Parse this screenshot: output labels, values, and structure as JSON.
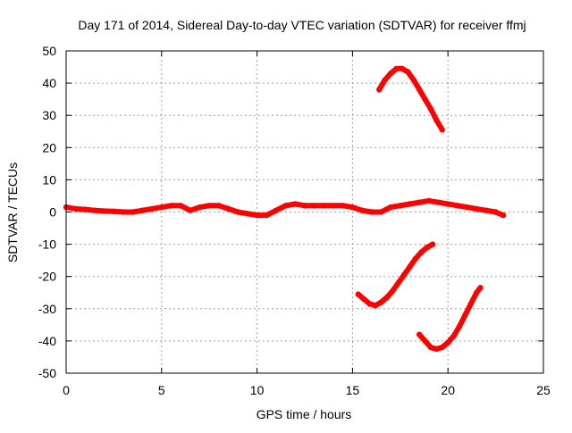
{
  "chart_data": {
    "type": "scatter",
    "title": "Day 171 of 2014, Sidereal Day-to-day VTEC variation (SDTVAR) for receiver ffmj",
    "xlabel": "GPS time / hours",
    "ylabel": "SDTVAR / TECUs",
    "xlim": [
      0,
      25
    ],
    "ylim": [
      -50,
      50
    ],
    "xticks": [
      0,
      5,
      10,
      15,
      20,
      25
    ],
    "yticks": [
      -50,
      -40,
      -30,
      -20,
      -10,
      0,
      10,
      20,
      30,
      40,
      50
    ],
    "grid": true,
    "legend": "none",
    "series": [
      {
        "name": "near-zero track",
        "x": [
          0.0,
          0.5,
          1.0,
          1.5,
          2.0,
          2.5,
          3.0,
          3.5,
          4.0,
          4.5,
          5.0,
          5.5,
          6.0,
          6.5,
          7.0,
          7.5,
          8.0,
          8.5,
          9.0,
          9.5,
          10.0,
          10.5,
          11.0,
          11.5,
          12.0,
          12.5,
          13.0,
          13.5,
          14.0,
          14.5,
          15.0,
          15.5,
          16.0,
          16.5,
          17.0,
          17.5,
          18.0,
          18.5,
          19.0,
          19.5,
          20.0,
          20.5,
          21.0,
          21.5,
          22.0,
          22.5,
          22.9
        ],
        "values": [
          1.5,
          1.0,
          0.8,
          0.5,
          0.3,
          0.2,
          0.0,
          0.0,
          0.5,
          1.0,
          1.5,
          2.0,
          2.0,
          0.5,
          1.5,
          2.0,
          2.0,
          1.0,
          0.0,
          -0.5,
          -1.0,
          -1.0,
          0.5,
          2.0,
          2.5,
          2.0,
          2.0,
          2.0,
          2.0,
          2.0,
          1.5,
          0.5,
          0.0,
          0.0,
          1.5,
          2.0,
          2.5,
          3.0,
          3.5,
          3.0,
          2.5,
          2.0,
          1.5,
          1.0,
          0.5,
          0.0,
          -1.0
        ],
        "color": "#ff0000"
      },
      {
        "name": "positive arc",
        "x": [
          16.4,
          16.7,
          17.0,
          17.3,
          17.6,
          17.9,
          18.2,
          18.5,
          18.8,
          19.1,
          19.4,
          19.7
        ],
        "values": [
          38,
          41,
          43,
          44.5,
          44.5,
          43.5,
          41,
          38,
          35,
          32,
          28.5,
          25.5
        ],
        "color": "#ff0000"
      },
      {
        "name": "negative arc A",
        "x": [
          15.3,
          15.6,
          15.9,
          16.2,
          16.5,
          16.8,
          17.1,
          17.4,
          17.7,
          18.0,
          18.3,
          18.6,
          18.9,
          19.2
        ],
        "values": [
          -25.5,
          -27,
          -28.5,
          -29,
          -28,
          -26.5,
          -24.5,
          -22,
          -19.5,
          -17,
          -14.5,
          -12.5,
          -11,
          -10
        ],
        "color": "#ff0000"
      },
      {
        "name": "negative arc B",
        "x": [
          18.5,
          18.8,
          19.1,
          19.4,
          19.7,
          20.0,
          20.3,
          20.6,
          20.9,
          21.2,
          21.5,
          21.7
        ],
        "values": [
          -38,
          -40,
          -42,
          -42.5,
          -42,
          -40.5,
          -38.5,
          -35.5,
          -32,
          -28.5,
          -25,
          -23.5
        ],
        "color": "#ff0000"
      }
    ]
  }
}
